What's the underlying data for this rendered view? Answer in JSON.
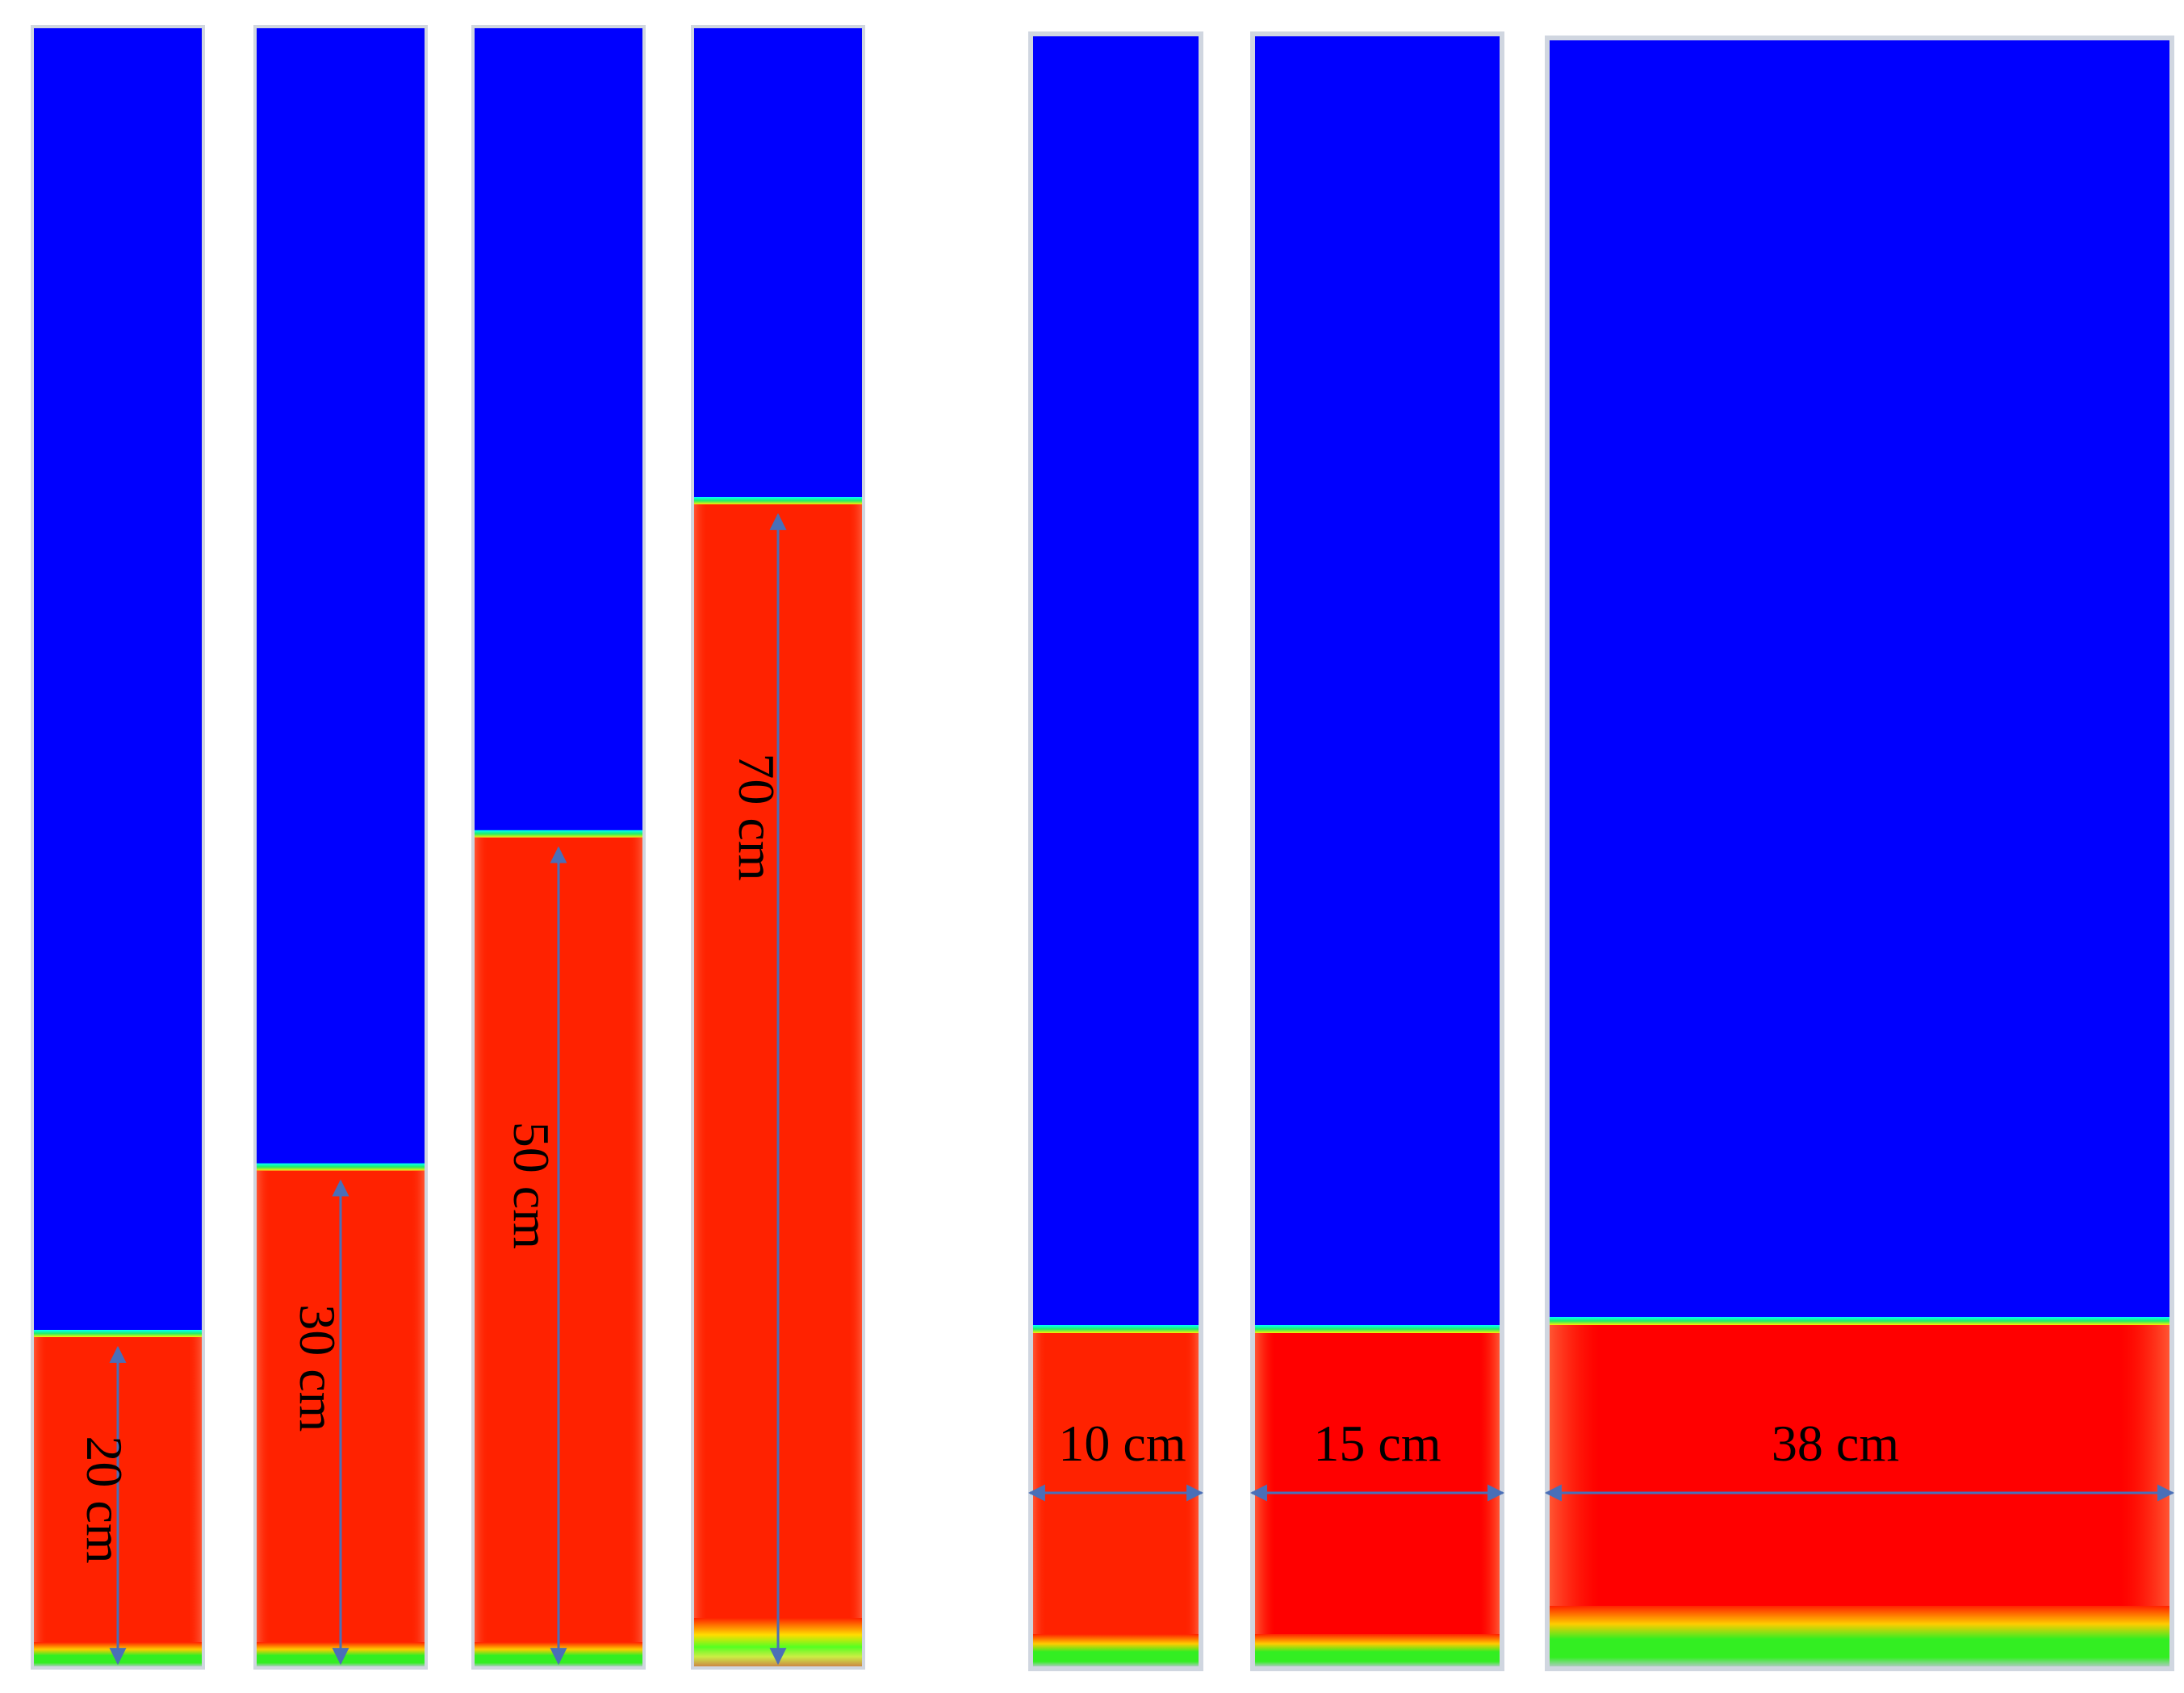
{
  "colors": {
    "gas_phase": "#0000ff",
    "liquid_phase": "#ff2200",
    "interface": "#00e0a0",
    "bottom_band": "#33ee22",
    "arrow": "#4a6fb8",
    "frame": "#d0d6e0"
  },
  "height_study": {
    "columns": [
      {
        "label": "20 cm",
        "fill_height_cm": 20
      },
      {
        "label": "30 cm",
        "fill_height_cm": 30
      },
      {
        "label": "50 cm",
        "fill_height_cm": 50
      },
      {
        "label": "70 cm",
        "fill_height_cm": 70
      }
    ]
  },
  "width_study": {
    "columns": [
      {
        "label": "10 cm",
        "width_cm": 10
      },
      {
        "label": "15 cm",
        "width_cm": 15
      },
      {
        "label": "38 cm",
        "width_cm": 38
      }
    ]
  }
}
